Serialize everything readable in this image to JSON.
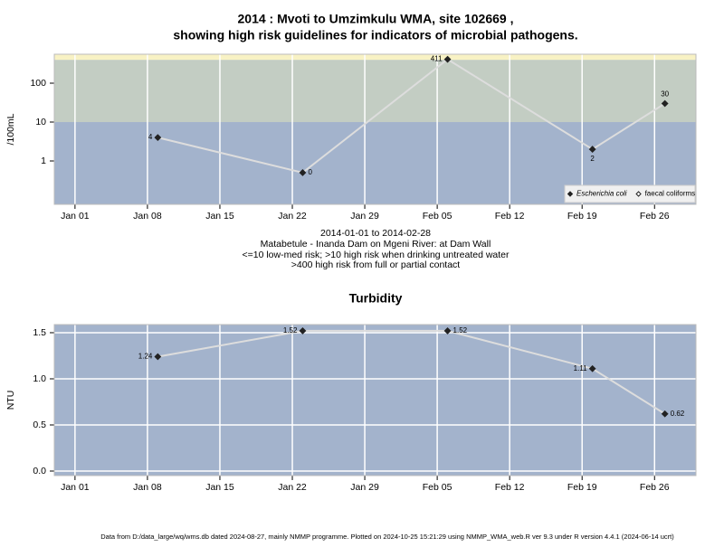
{
  "chart_data": [
    {
      "type": "line",
      "title": [
        "2014 : Mvoti to Umzimkulu WMA, site 102669 ,",
        "showing high risk guidelines for indicators of microbial pathogens."
      ],
      "subtitle": [
        "2014-01-01 to 2014-02-28",
        "Matabetule - Inanda Dam on Mgeni River: at Dam Wall",
        "<=10 low-med risk; >10 high risk when drinking untreated water",
        ">400 high risk from full or partial contact"
      ],
      "ylabel": "/100mL",
      "log_y": true,
      "x": [
        "2014-01-09",
        "2014-01-23",
        "2014-02-06",
        "2014-02-20",
        "2014-02-27"
      ],
      "series": [
        {
          "name": "Escherichia coli",
          "font_style": "italic",
          "marker": "filled",
          "color": "#222222",
          "line_color": "#dddddd",
          "values": [
            4,
            0.5,
            411,
            2,
            30
          ],
          "value_labels": [
            "4",
            "0",
            "411",
            "2",
            "30"
          ],
          "label_positions": [
            "left",
            "right",
            "left",
            "below",
            "above"
          ]
        },
        {
          "name": "faecal coliforms",
          "marker": "open",
          "color": "#222222",
          "line_color": "#dddddd",
          "values": [
            null,
            null,
            null,
            null,
            null
          ]
        }
      ],
      "xlim": [
        "2013-12-30",
        "2014-03-02"
      ],
      "xticks": [
        {
          "value": "2014-01-01",
          "label": "Jan 01"
        },
        {
          "value": "2014-01-08",
          "label": "Jan 08"
        },
        {
          "value": "2014-01-15",
          "label": "Jan 15"
        },
        {
          "value": "2014-01-22",
          "label": "Jan 22"
        },
        {
          "value": "2014-01-29",
          "label": "Jan 29"
        },
        {
          "value": "2014-02-05",
          "label": "Feb 05"
        },
        {
          "value": "2014-02-12",
          "label": "Feb 12"
        },
        {
          "value": "2014-02-19",
          "label": "Feb 19"
        },
        {
          "value": "2014-02-26",
          "label": "Feb 26"
        }
      ],
      "ylim": [
        0.0766,
        555
      ],
      "yticks": [
        1,
        10,
        100
      ],
      "thresholds": [
        10,
        400
      ],
      "band_colors": [
        "#a3b3cc",
        "#c3cdc3",
        "#f8f2c4"
      ],
      "grid": "x",
      "legend": "bottom-right"
    },
    {
      "type": "line",
      "title": [
        "Turbidity"
      ],
      "ylabel": "NTU",
      "log_y": false,
      "x": [
        "2014-01-09",
        "2014-01-23",
        "2014-02-06",
        "2014-02-20",
        "2014-02-27"
      ],
      "series": [
        {
          "marker": "filled",
          "color": "#222222",
          "line_color": "#dddddd",
          "values": [
            1.24,
            1.52,
            1.52,
            1.11,
            0.62
          ],
          "label_positions": [
            "left",
            "left",
            "right",
            "left",
            "right"
          ]
        }
      ],
      "xlim": [
        "2013-12-30",
        "2014-03-02"
      ],
      "xticks": [
        {
          "value": "2014-01-01",
          "label": "Jan 01"
        },
        {
          "value": "2014-01-08",
          "label": "Jan 08"
        },
        {
          "value": "2014-01-15",
          "label": "Jan 15"
        },
        {
          "value": "2014-01-22",
          "label": "Jan 22"
        },
        {
          "value": "2014-01-29",
          "label": "Jan 29"
        },
        {
          "value": "2014-02-05",
          "label": "Feb 05"
        },
        {
          "value": "2014-02-12",
          "label": "Feb 12"
        },
        {
          "value": "2014-02-19",
          "label": "Feb 19"
        },
        {
          "value": "2014-02-26",
          "label": "Feb 26"
        }
      ],
      "ylim": [
        -0.049,
        1.588
      ],
      "yticks": [
        {
          "value": 0,
          "label": "0.0"
        },
        {
          "value": 0.5,
          "label": "0.5"
        },
        {
          "value": 1,
          "label": "1.0"
        },
        {
          "value": 1.5,
          "label": "1.5"
        }
      ],
      "background": "#a3b3cc",
      "grid": "both"
    }
  ],
  "footer": "Data from D:/data_large/wq/wms.db dated 2024-08-27, mainly NMMP programme. Plotted on 2024-10-25 15:21:29 using NMMP_WMA_web.R ver 9.3 under R version 4.4.1 (2024-06-14 ucrt)"
}
